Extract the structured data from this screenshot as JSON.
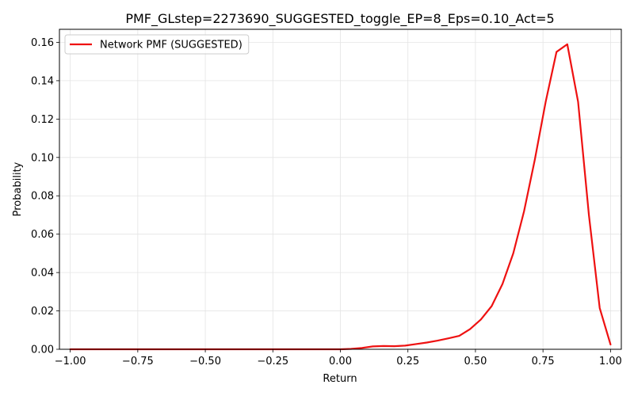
{
  "chart_data": {
    "type": "line",
    "title": "PMF_GLstep=2273690_SUGGESTED_toggle_EP=8_Eps=0.10_Act=5",
    "xlabel": "Return",
    "ylabel": "Probability",
    "xlim": [
      -1.04,
      1.04
    ],
    "ylim": [
      0.0,
      0.1668
    ],
    "xticks": [
      -1.0,
      -0.75,
      -0.5,
      -0.25,
      0.0,
      0.25,
      0.5,
      0.75,
      1.0
    ],
    "xtick_labels": [
      "−1.00",
      "−0.75",
      "−0.50",
      "−0.25",
      "0.00",
      "0.25",
      "0.50",
      "0.75",
      "1.00"
    ],
    "yticks": [
      0.0,
      0.02,
      0.04,
      0.06,
      0.08,
      0.1,
      0.12,
      0.14,
      0.16
    ],
    "ytick_labels": [
      "0.00",
      "0.02",
      "0.04",
      "0.06",
      "0.08",
      "0.10",
      "0.12",
      "0.14",
      "0.16"
    ],
    "grid": true,
    "legend_position": "top-left",
    "series": [
      {
        "name": "Network PMF (SUGGESTED)",
        "color": "#ee1111",
        "x": [
          -1.0,
          -0.96,
          -0.92,
          -0.88,
          -0.84,
          -0.8,
          -0.76,
          -0.72,
          -0.68,
          -0.64,
          -0.6,
          -0.56,
          -0.52,
          -0.48,
          -0.44,
          -0.4,
          -0.36,
          -0.32,
          -0.28,
          -0.24,
          -0.2,
          -0.16,
          -0.12,
          -0.08,
          -0.04,
          0.0,
          0.04,
          0.08,
          0.12,
          0.16,
          0.2,
          0.24,
          0.28,
          0.32,
          0.36,
          0.4,
          0.44,
          0.48,
          0.52,
          0.56,
          0.6,
          0.64,
          0.68,
          0.72,
          0.76,
          0.8,
          0.84,
          0.88,
          0.92,
          0.96,
          1.0
        ],
        "y": [
          0.0,
          0.0,
          0.0,
          0.0,
          0.0,
          0.0,
          0.0,
          0.0,
          0.0,
          0.0,
          0.0,
          0.0,
          0.0,
          0.0,
          0.0,
          0.0,
          0.0,
          0.0,
          0.0,
          0.0,
          0.0,
          0.0,
          0.0,
          0.0,
          0.0,
          0.0,
          0.0002,
          0.0007,
          0.0015,
          0.0017,
          0.0016,
          0.0019,
          0.0027,
          0.0035,
          0.0045,
          0.0057,
          0.007,
          0.0105,
          0.0155,
          0.0225,
          0.034,
          0.05,
          0.072,
          0.099,
          0.129,
          0.155,
          0.159,
          0.129,
          0.07,
          0.0215,
          0.0025
        ]
      }
    ]
  }
}
